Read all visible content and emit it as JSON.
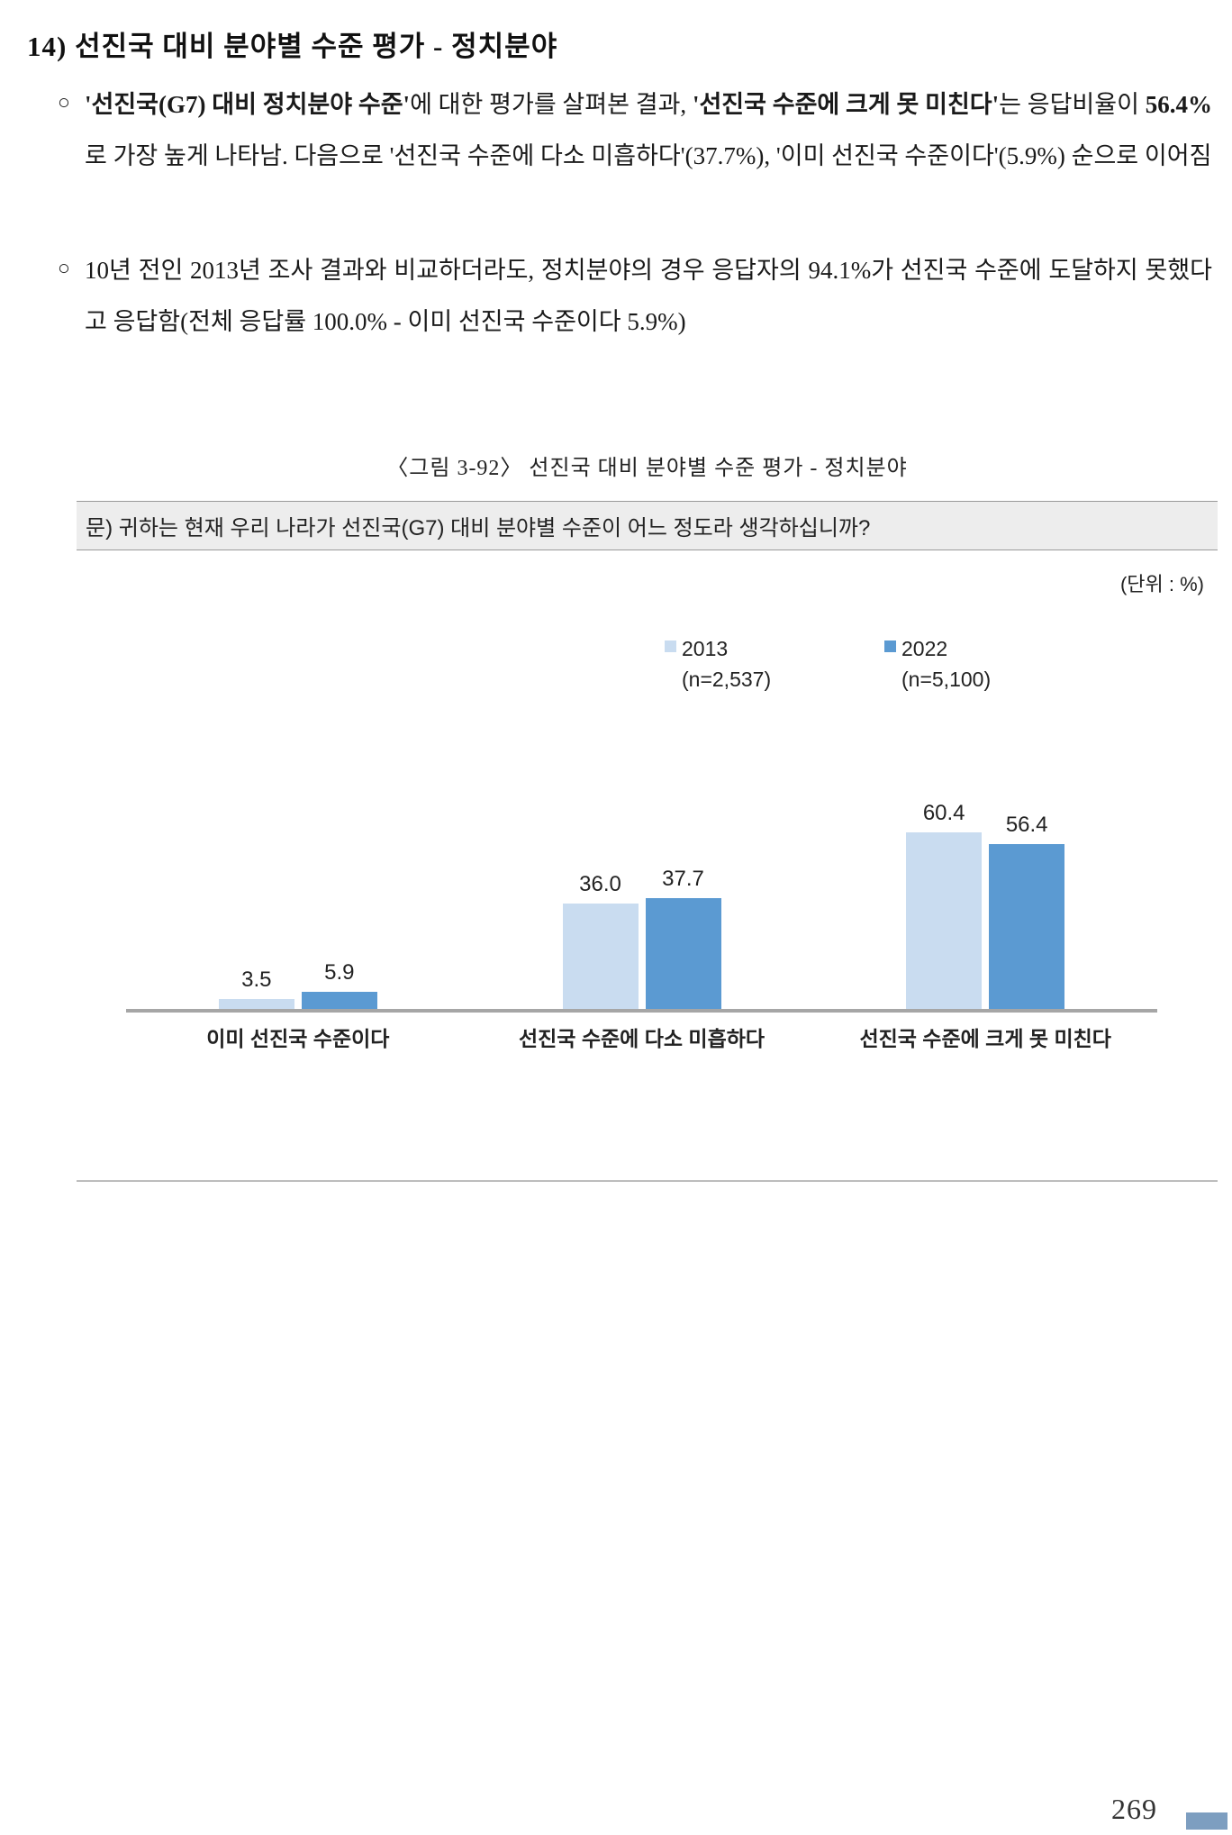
{
  "page": {
    "title": "14) 선진국 대비 분야별 수준 평가 - 정치분야",
    "page_number": "269"
  },
  "bullets": [
    {
      "marker": "○",
      "runs": [
        {
          "text": "'선진국(G7) 대비 정치분야 수준'",
          "bold": true
        },
        {
          "text": "에 대한 평가를 살펴본 결과, ",
          "bold": false
        },
        {
          "text": "'선진국 수준에 크게 못 미친다'",
          "bold": true
        },
        {
          "text": "는 응답비율이 ",
          "bold": false
        },
        {
          "text": "56.4%",
          "bold": true
        },
        {
          "text": "로 가장 높게 나타남. 다음으로 '선진국 수준에 다소 미흡하다'(37.7%), '이미 선진국 수준이다'(5.9%) 순으로 이어짐",
          "bold": false
        }
      ]
    },
    {
      "marker": "○",
      "runs": [
        {
          "text": "10년 전인 2013년 조사 결과와 비교하더라도, 정치분야의 경우 응답자의 94.1%가 선진국 수준에 도달하지 못했다고 응답함(전체 응답률 100.0% - 이미 선진국 수준이다 5.9%)",
          "bold": false
        }
      ]
    }
  ],
  "figure": {
    "caption": "〈그림 3-92〉 선진국 대비 분야별 수준 평가 - 정치분야",
    "question": "문) 귀하는 현재 우리 나라가 선진국(G7) 대비 분야별 수준이 어느 정도라 생각하십니까?",
    "unit_label": "(단위 : %)"
  },
  "chart_data": {
    "type": "bar",
    "title": "선진국 대비 분야별 수준 평가 - 정치분야",
    "categories": [
      "이미 선진국 수준이다",
      "선진국 수준에 다소 미흡하다",
      "선진국 수준에 크게 못 미친다"
    ],
    "series": [
      {
        "name": "2013",
        "n_label": "(n=2,537)",
        "color": "#c9dcf0",
        "values": [
          3.5,
          36.0,
          60.4
        ]
      },
      {
        "name": "2022",
        "n_label": "(n=5,100)",
        "color": "#5b9ad2",
        "values": [
          5.9,
          37.7,
          56.4
        ]
      }
    ],
    "unit": "%",
    "ylim": [
      0,
      65
    ],
    "grid": false,
    "legend_position": "top-center",
    "value_labels": true,
    "baseline_color": "#a6a6a6"
  },
  "colors": {
    "question_box_bg": "#ededed",
    "edge_tab": "#7d9ec0",
    "series_2013": "#c9dcf0",
    "series_2022": "#5b9ad2"
  }
}
